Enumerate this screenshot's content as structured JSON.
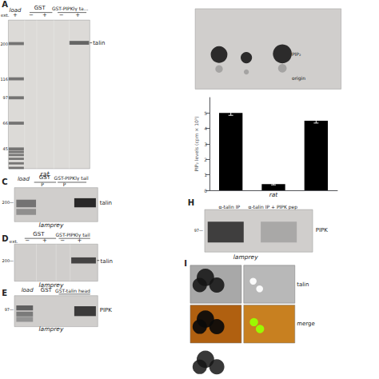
{
  "chart_data": {
    "type": "bar",
    "categories": [
      null,
      null,
      null
    ],
    "values": [
      5.0,
      0.4,
      4.5
    ],
    "errors": [
      0.15,
      0.05,
      0.15
    ],
    "color": "black",
    "ylabel": "PIP₂ levels (cpm × 10³)",
    "ylim": [
      0,
      6
    ],
    "yticks": [
      0,
      1,
      2,
      3,
      4,
      5
    ],
    "grid": false,
    "tick_labels": "y",
    "annotations": [
      "A",
      "load",
      "GST",
      "GST-PIPKlγ ta...",
      "ext.",
      "+",
      "−",
      "+",
      "−",
      "+",
      "200",
      "116",
      "97",
      "66",
      "45",
      "talin",
      "rat",
      "PIP₂",
      "origin",
      "rat",
      "H",
      "α-talin IP",
      "α-talin IP + PIPK pep",
      "97—",
      "PIPK",
      "lamprey",
      "C",
      "load",
      "GST",
      "GST-PIPKlγ tail",
      "P",
      "P",
      "200—",
      "talin",
      "lamprey",
      "D",
      "GST",
      "GST-PIPKlγ tail",
      "ext.",
      "−",
      "+",
      "−",
      "+",
      "200—",
      "talin",
      "lamprey",
      "E",
      "load",
      "GST",
      "GST-talin head",
      "97—",
      "PIPK",
      "lamprey",
      "I",
      "talin",
      "merge"
    ]
  }
}
